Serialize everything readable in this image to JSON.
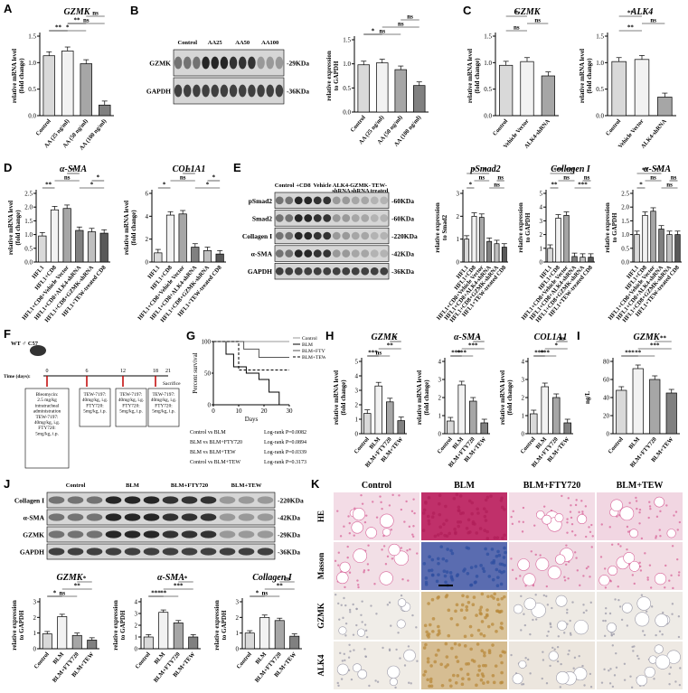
{
  "panel_letters": [
    "A",
    "B",
    "C",
    "D",
    "E",
    "F",
    "G",
    "H",
    "I",
    "J",
    "K"
  ],
  "colors": {
    "light": "#d9d9d9",
    "mid": "#a6a6a6",
    "dark": "#808080",
    "darker": "#595959",
    "blue_stain": "#3b5ba8",
    "he_pink": "#d8659a",
    "ihc_brown": "#b8893b"
  },
  "chart_data": [
    {
      "id": "A",
      "type": "bar",
      "title": "GZMK",
      "ylabel": "relative mRNA level\n(fold change)",
      "ylim": [
        0,
        1.5
      ],
      "yticks": [
        "0.0",
        "0.5",
        "1.0",
        "1.5"
      ],
      "categories": [
        "Control",
        "AA (25 ng/ml)",
        "AA (50 ng/ml)",
        "AA (100 ng/ml)"
      ],
      "values": [
        1.13,
        1.22,
        0.98,
        0.2
      ],
      "sig": [
        "**",
        "ns",
        "ns",
        "*",
        "**"
      ]
    },
    {
      "id": "B",
      "type": "bar",
      "ylabel": "relative expression\nto GAPDH",
      "ylim": [
        0,
        1.5
      ],
      "yticks": [
        "0.0",
        "0.5",
        "1.0",
        "1.5"
      ],
      "categories": [
        "Control",
        "AA (25 ng/ml)",
        "AA (50 ng/ml)",
        "AA (100 ng/ml)"
      ],
      "values": [
        0.98,
        1.02,
        0.88,
        0.55
      ],
      "sig": [
        "*",
        "ns",
        "ns",
        "ns"
      ]
    },
    {
      "id": "C1",
      "type": "bar",
      "title": "GZMK",
      "ylabel": "relative mRNA level\n(fold change)",
      "ylim": [
        0,
        1.5
      ],
      "yticks": [
        "0.0",
        "0.5",
        "1.0",
        "1.5"
      ],
      "categories": [
        "Control",
        "Vehicle Vector",
        "ALK4-shRNA"
      ],
      "values": [
        0.95,
        1.02,
        0.75
      ],
      "sig": [
        "ns",
        "ns",
        "*"
      ]
    },
    {
      "id": "C2",
      "type": "bar",
      "title": "ALK4",
      "ylabel": "relative mRNA level\n(fold change)",
      "ylim": [
        0,
        1.5
      ],
      "yticks": [
        "0.0",
        "0.5",
        "1.0",
        "1.5"
      ],
      "categories": [
        "Control",
        "Vehicle Vector",
        "ALK4-shRNA"
      ],
      "values": [
        1.02,
        1.06,
        0.35
      ],
      "sig": [
        "**",
        "ns",
        "**"
      ]
    },
    {
      "id": "D1",
      "type": "bar",
      "title": "α-SMA",
      "ylabel": "relative mRNA level\n(fold change)",
      "ylim": [
        0,
        2.5
      ],
      "yticks": [
        "0.0",
        "0.5",
        "1.0",
        "1.5",
        "2.0",
        "2.5"
      ],
      "categories": [
        "HFL1",
        "HFL1+CD8",
        "HFL1+CD8+Vehicle Vector",
        "HFL1+CD8+ALK4-shRNA",
        "HFL1+CD8+GZMK-shRNA",
        "HFL1+TEW-treated CD8"
      ],
      "values": [
        0.95,
        1.9,
        1.95,
        1.15,
        1.1,
        1.05
      ],
      "sig": [
        "**",
        "ns",
        "*",
        "*",
        "*"
      ]
    },
    {
      "id": "D2",
      "type": "bar",
      "title": "COL1A1",
      "ylabel": "relative mRNA level\n(fold change)",
      "ylim": [
        0,
        6
      ],
      "yticks": [
        "0",
        "2",
        "4",
        "6"
      ],
      "categories": [
        "HFL1",
        "HFL1+CD8",
        "HFL1+CD8+Vehicle Vector",
        "HFL1+CD8+ALK4-shRNA",
        "HFL1+CD8+GZMK-shRNA",
        "HFL1+TEW-treated CD8"
      ],
      "values": [
        0.8,
        4.1,
        4.2,
        1.3,
        1.0,
        0.7
      ],
      "sig": [
        "*",
        "ns",
        "*",
        "*",
        "*"
      ]
    },
    {
      "id": "E1",
      "type": "bar",
      "title": "pSmad2",
      "ylabel": "relative expression\nto Smad2",
      "ylim": [
        0,
        3
      ],
      "yticks": [
        "0",
        "1",
        "2",
        "3"
      ],
      "categories": [
        "HFL1",
        "HFL1+CD8",
        "HFL1+CD8+Vehicle Vector",
        "HFL1+CD8+ALK4-shRNA",
        "HFL1+CD8+GZMK-shRNA",
        "HFL1+TEW-treated CD8"
      ],
      "values": [
        1.0,
        2.0,
        1.95,
        0.9,
        0.8,
        0.65
      ],
      "sig": [
        "*",
        "ns",
        "*",
        "ns",
        "ns",
        "*"
      ]
    },
    {
      "id": "E2",
      "type": "bar",
      "title": "Collagen I",
      "ylabel": "relative expression\nto GAPDH",
      "ylim": [
        0,
        5
      ],
      "yticks": [
        "0",
        "1",
        "2",
        "3",
        "4",
        "5"
      ],
      "categories": [
        "HFL1",
        "HFL1+CD8",
        "HFL1+CD8+Vehicle Vector",
        "HFL1+CD8+ALK4-shRNA",
        "HFL1+CD8+GZMK-shRNA",
        "HFL1+TEW-treated CD8"
      ],
      "values": [
        1.0,
        3.2,
        3.4,
        0.4,
        0.35,
        0.35
      ],
      "sig": [
        "**",
        "ns",
        "***",
        "***",
        "ns",
        "***"
      ]
    },
    {
      "id": "E3",
      "type": "bar",
      "title": "α-SMA",
      "ylabel": "relative expression\nto GAPDH",
      "ylim": [
        0,
        2.5
      ],
      "yticks": [
        "0.0",
        "0.5",
        "1.0",
        "1.5",
        "2.0",
        "2.5"
      ],
      "categories": [
        "HFL1",
        "HFL1+CD8",
        "HFL1+CD8+Vehicle Vector",
        "HFL1+CD8+ALK4-shRNA",
        "HFL1+CD8+GZMK-shRNA",
        "HFL1+TEW-treated CD8"
      ],
      "values": [
        1.0,
        1.7,
        1.85,
        1.2,
        1.0,
        1.0
      ],
      "sig": [
        "*",
        "ns",
        "*",
        "ns",
        "ns",
        "**"
      ]
    },
    {
      "id": "G",
      "type": "line",
      "ylabel": "Percent survival",
      "xlabel": "Days",
      "xlim": [
        0,
        30
      ],
      "ylim": [
        0,
        100
      ],
      "xticks": [
        "0",
        "10",
        "20",
        "30"
      ],
      "yticks": [
        "0",
        "50",
        "100"
      ],
      "series": [
        {
          "name": "Control",
          "x": [
            0,
            30
          ],
          "y": [
            100,
            100
          ]
        },
        {
          "name": "BLM",
          "x": [
            0,
            5,
            5,
            8,
            8,
            13,
            13,
            18,
            18,
            22,
            22,
            26,
            26,
            30
          ],
          "y": [
            100,
            100,
            80,
            80,
            60,
            60,
            50,
            50,
            40,
            40,
            20,
            20,
            0,
            0
          ]
        },
        {
          "name": "BLM+FTY720",
          "x": [
            0,
            12,
            12,
            18,
            18,
            30
          ],
          "y": [
            100,
            100,
            88,
            88,
            75,
            75
          ]
        },
        {
          "name": "BLM+TEW",
          "x": [
            0,
            10,
            10,
            30
          ],
          "y": [
            100,
            100,
            55,
            55
          ]
        }
      ],
      "stats": [
        "Control vs BLM",
        "Log-rank P=0.0082",
        "BLM vs BLM+FTY720",
        "Log-rank P=0.0894",
        "BLM vs BLM+TEW",
        "Log-rank P=0.0339",
        "Control vs BLM+TEW",
        "Log-rank P=0.3173"
      ]
    },
    {
      "id": "H1",
      "type": "bar",
      "title": "GZMK",
      "ylabel": "relative mRNA level\n(fold change)",
      "ylim": [
        0,
        5
      ],
      "yticks": [
        "0",
        "1",
        "2",
        "3",
        "4",
        "5"
      ],
      "categories": [
        "Control",
        "BLM",
        "BLM+FTY720",
        "BLM+TEW"
      ],
      "values": [
        1.4,
        3.3,
        2.2,
        0.9
      ],
      "sig": [
        "***",
        "**",
        "*",
        "ns"
      ]
    },
    {
      "id": "H2",
      "type": "bar",
      "title": "α-SMA",
      "ylabel": "relative mRNA level\n(fold change)",
      "ylim": [
        0,
        4
      ],
      "yticks": [
        "0",
        "1",
        "2",
        "3",
        "4"
      ],
      "categories": [
        "Control",
        "BLM",
        "BLM+FTY720",
        "BLM+TEW"
      ],
      "values": [
        0.7,
        2.7,
        1.8,
        0.6
      ],
      "sig": [
        "***",
        "***",
        "*",
        "***"
      ]
    },
    {
      "id": "H3",
      "type": "bar",
      "title": "COL1A1",
      "ylabel": "relative mRNA level\n(fold change)",
      "ylim": [
        0,
        4
      ],
      "yticks": [
        "0",
        "1",
        "2",
        "3",
        "4"
      ],
      "categories": [
        "Control",
        "BLM",
        "BLM+FTY720",
        "BLM+TEW"
      ],
      "values": [
        1.1,
        2.6,
        2.0,
        0.6
      ],
      "sig": [
        "***",
        "*",
        "ns",
        "***"
      ]
    },
    {
      "id": "I",
      "type": "bar",
      "title": "GZMK",
      "ylabel": "ng/L",
      "ylim": [
        0,
        80
      ],
      "yticks": [
        "0",
        "20",
        "40",
        "60",
        "80"
      ],
      "categories": [
        "Control",
        "BLM",
        "BLM+FTY720",
        "BLM+TEW"
      ],
      "values": [
        48,
        72,
        60,
        45
      ],
      "sig": [
        "***",
        "***",
        "**",
        "**"
      ]
    },
    {
      "id": "J1",
      "type": "bar",
      "title": "GZMK",
      "ylabel": "relative expression\nto GAPDH",
      "ylim": [
        0,
        3
      ],
      "yticks": [
        "0",
        "1",
        "2",
        "3"
      ],
      "categories": [
        "Control",
        "BLM",
        "BLM+FTY720",
        "BLM+TEW"
      ],
      "values": [
        0.95,
        2.05,
        0.85,
        0.55
      ],
      "sig": [
        "*",
        "**",
        "*",
        "ns"
      ]
    },
    {
      "id": "J2",
      "type": "bar",
      "title": "α-SMA",
      "ylabel": "relative expression\nto GAPDH",
      "ylim": [
        0,
        4
      ],
      "yticks": [
        "0",
        "1",
        "2",
        "3",
        "4"
      ],
      "categories": [
        "Control",
        "BLM",
        "BLM+FTY720",
        "BLM+TEW"
      ],
      "values": [
        1.0,
        3.1,
        2.2,
        1.0
      ],
      "sig": [
        "***",
        "***",
        "*",
        "**"
      ]
    },
    {
      "id": "J3",
      "type": "bar",
      "title": "Collagen I",
      "ylabel": "relative expression\nto GAPDH",
      "ylim": [
        0,
        3
      ],
      "yticks": [
        "0",
        "1",
        "2",
        "3"
      ],
      "categories": [
        "Control",
        "BLM",
        "BLM+FTY720",
        "BLM+TEW"
      ],
      "values": [
        1.0,
        2.0,
        1.8,
        0.8
      ],
      "sig": [
        "*",
        "**",
        "ns",
        "ns"
      ]
    }
  ],
  "blot_B": {
    "lanes": [
      "Control",
      "AA25",
      "AA50",
      "AA100"
    ],
    "rows": [
      {
        "name": "GZMK",
        "kda": "29KDa"
      },
      {
        "name": "GAPDH",
        "kda": "36KDa"
      }
    ]
  },
  "blot_E": {
    "lanes": [
      "Control",
      "+CD8",
      "Vehicle",
      "ALK4-\nshRNA",
      "GZMK-\nshRNA",
      "TEW-\ntreated"
    ],
    "rows": [
      {
        "name": "pSmad2",
        "kda": "60KDa"
      },
      {
        "name": "Smad2",
        "kda": "60KDa"
      },
      {
        "name": "Collagen I",
        "kda": "220KDa"
      },
      {
        "name": "α-SMA",
        "kda": "42KDa"
      },
      {
        "name": "GAPDH",
        "kda": "36KDa"
      }
    ]
  },
  "blot_J": {
    "lanes": [
      "Control",
      "BLM",
      "BLM+FTY720",
      "BLM+TEW"
    ],
    "rows": [
      {
        "name": "Collagen I",
        "kda": "220KDa"
      },
      {
        "name": "α-SMA",
        "kda": "42KDa"
      },
      {
        "name": "GZMK",
        "kda": "29KDa"
      },
      {
        "name": "GAPDH",
        "kda": "36KDa"
      }
    ]
  },
  "panel_F": {
    "mouse": "WT ♂ C57",
    "timeline_label": "Time (days):",
    "days": [
      "0",
      "6",
      "12",
      "18",
      "21"
    ],
    "sacrifice": "Sacrifice",
    "boxes": [
      "Bleomycin:\n2.5 mg/kg\nintratracheal\nadministration\nTEW-7197:\n40mg/kg, i.g.\nFTY720:\n5mg/kg, i.p.",
      "TEW-7197:\n40mg/kg, i.g.\nFTY720:\n5mg/kg, i.p.",
      "TEW-7197:\n40mg/kg, i.g.\nFTY720:\n5mg/kg, i.p.",
      "TEW-7197:\n40mg/kg, i.g.\nFTY720:\n5mg/kg, i.p."
    ]
  },
  "panel_K": {
    "columns": [
      "Control",
      "BLM",
      "BLM+FTY720",
      "BLM+TEW"
    ],
    "rows": [
      "HE",
      "Masson",
      "GZMK",
      "ALK4"
    ]
  }
}
